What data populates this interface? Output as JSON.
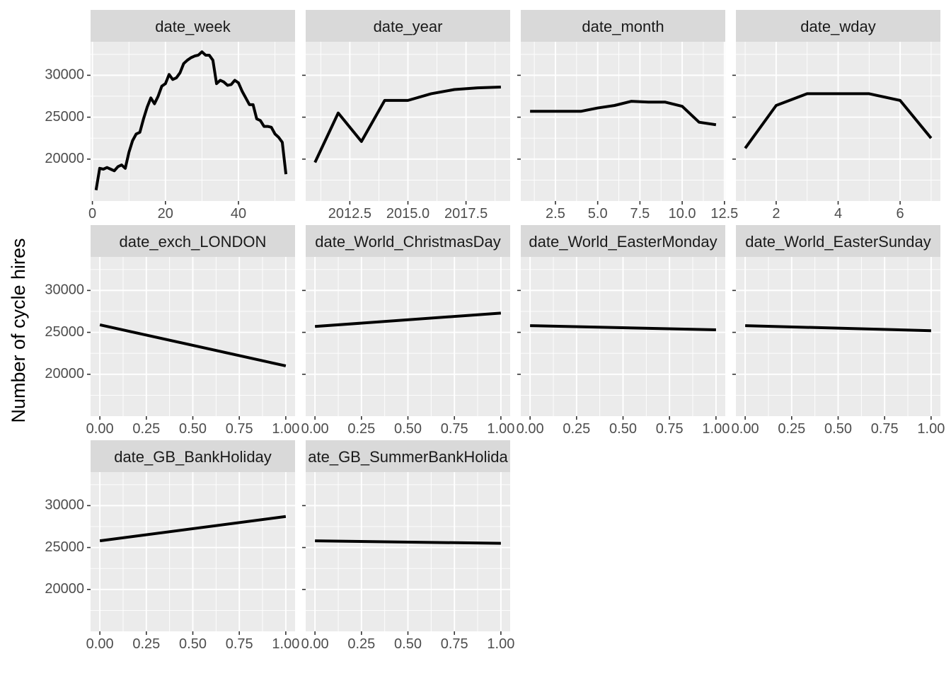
{
  "chart_data": {
    "type": "line",
    "ylabel": "Number of cycle hires",
    "ylim": [
      15000,
      34000
    ],
    "y_ticks": [
      20000,
      25000,
      30000
    ],
    "y_tick_labels": [
      "20000",
      "25000",
      "30000"
    ],
    "grid": true,
    "line_color": "#000000",
    "panel_background": "#ebebeb",
    "strip_background": "#d9d9d9",
    "facets": [
      {
        "title": "date_week",
        "xlim": [
          -0.5,
          55.5
        ],
        "x_ticks": [
          0,
          20,
          40
        ],
        "x_tick_labels": [
          "0",
          "20",
          "40"
        ],
        "x": [
          1,
          2,
          3,
          4,
          5,
          6,
          7,
          8,
          9,
          10,
          11,
          12,
          13,
          14,
          15,
          16,
          17,
          18,
          19,
          20,
          21,
          22,
          23,
          24,
          25,
          26,
          27,
          28,
          29,
          30,
          31,
          32,
          33,
          34,
          35,
          36,
          37,
          38,
          39,
          40,
          41,
          42,
          43,
          44,
          45,
          46,
          47,
          48,
          49,
          50,
          51,
          52,
          53
        ],
        "y": [
          16300,
          18900,
          18800,
          19000,
          18800,
          18600,
          19100,
          19300,
          18900,
          20800,
          22200,
          23000,
          23200,
          24800,
          26200,
          27300,
          26600,
          27500,
          28700,
          29000,
          30100,
          29500,
          29700,
          30300,
          31400,
          31800,
          32100,
          32300,
          32400,
          32800,
          32400,
          32400,
          31800,
          29000,
          29400,
          29200,
          28800,
          28900,
          29400,
          29100,
          28100,
          27300,
          26500,
          26500,
          24800,
          24600,
          23900,
          23900,
          23800,
          23000,
          22600,
          22000,
          18200
        ]
      },
      {
        "title": "date_year",
        "xlim": [
          2010.6,
          2019.4
        ],
        "x_ticks": [
          2012.5,
          2015.0,
          2017.5
        ],
        "x_tick_labels": [
          "2012.5",
          "2015.0",
          "2017.5"
        ],
        "x": [
          2011,
          2012,
          2013,
          2014,
          2015,
          2016,
          2017,
          2018,
          2019
        ],
        "y": [
          19600,
          25500,
          22100,
          27000,
          27000,
          27800,
          28300,
          28500,
          28600
        ]
      },
      {
        "title": "date_month",
        "xlim": [
          0.45,
          12.55
        ],
        "x_ticks": [
          2.5,
          5.0,
          7.5,
          10.0,
          12.5
        ],
        "x_tick_labels": [
          "2.5",
          "5.0",
          "7.5",
          "10.0",
          "12.5"
        ],
        "x": [
          1,
          2,
          3,
          4,
          5,
          6,
          7,
          8,
          9,
          10,
          11,
          12
        ],
        "y": [
          25700,
          25700,
          25700,
          25700,
          26100,
          26400,
          26900,
          26800,
          26800,
          26300,
          24400,
          24100
        ]
      },
      {
        "title": "date_wday",
        "xlim": [
          0.7,
          7.3
        ],
        "x_ticks": [
          2,
          4,
          6
        ],
        "x_tick_labels": [
          "2",
          "4",
          "6"
        ],
        "x": [
          1,
          2,
          3,
          4,
          5,
          6,
          7
        ],
        "y": [
          21300,
          26400,
          27800,
          27800,
          27800,
          27000,
          22500
        ]
      },
      {
        "title": "date_exch_LONDON",
        "xlim": [
          -0.05,
          1.05
        ],
        "x_ticks": [
          0,
          0.25,
          0.5,
          0.75,
          1
        ],
        "x_tick_labels": [
          "0.00",
          "0.25",
          "0.50",
          "0.75",
          "1.00"
        ],
        "x": [
          0,
          1
        ],
        "y": [
          25900,
          21000
        ]
      },
      {
        "title": "date_World_ChristmasDay",
        "xlim": [
          -0.05,
          1.05
        ],
        "x_ticks": [
          0,
          0.25,
          0.5,
          0.75,
          1
        ],
        "x_tick_labels": [
          "0.00",
          "0.25",
          "0.50",
          "0.75",
          "1.00"
        ],
        "x": [
          0,
          1
        ],
        "y": [
          25700,
          27300
        ]
      },
      {
        "title": "date_World_EasterMonday",
        "xlim": [
          -0.05,
          1.05
        ],
        "x_ticks": [
          0,
          0.25,
          0.5,
          0.75,
          1
        ],
        "x_tick_labels": [
          "0.00",
          "0.25",
          "0.50",
          "0.75",
          "1.00"
        ],
        "x": [
          0,
          1
        ],
        "y": [
          25800,
          25300
        ]
      },
      {
        "title": "date_World_EasterSunday",
        "xlim": [
          -0.05,
          1.05
        ],
        "x_ticks": [
          0,
          0.25,
          0.5,
          0.75,
          1
        ],
        "x_tick_labels": [
          "0.00",
          "0.25",
          "0.50",
          "0.75",
          "1.00"
        ],
        "x": [
          0,
          1
        ],
        "y": [
          25800,
          25200
        ]
      },
      {
        "title": "date_GB_BankHoliday",
        "xlim": [
          -0.05,
          1.05
        ],
        "x_ticks": [
          0,
          0.25,
          0.5,
          0.75,
          1
        ],
        "x_tick_labels": [
          "0.00",
          "0.25",
          "0.50",
          "0.75",
          "1.00"
        ],
        "x": [
          0,
          1
        ],
        "y": [
          25800,
          28700
        ]
      },
      {
        "title": "ate_GB_SummerBankHolida",
        "xlim": [
          -0.05,
          1.05
        ],
        "x_ticks": [
          0,
          0.25,
          0.5,
          0.75,
          1
        ],
        "x_tick_labels": [
          "0.00",
          "0.25",
          "0.50",
          "0.75",
          "1.00"
        ],
        "x": [
          0,
          1
        ],
        "y": [
          25800,
          25500
        ]
      }
    ]
  }
}
